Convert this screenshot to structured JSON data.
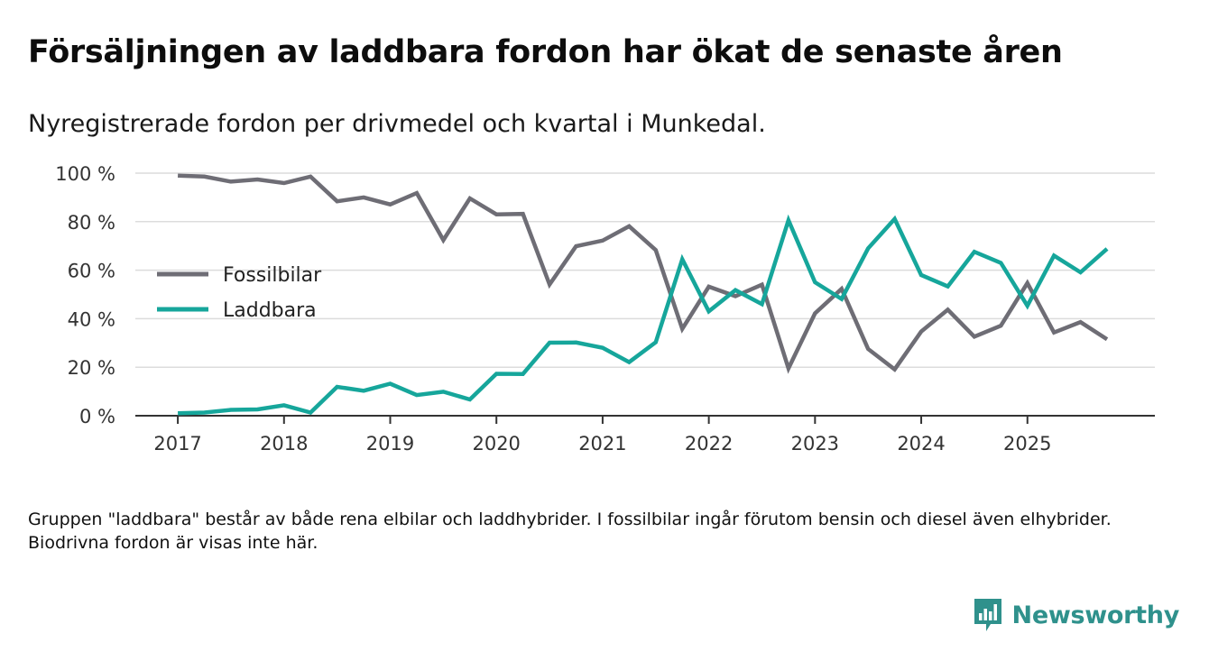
{
  "title": "Försäljningen av laddbara fordon har ökat de senaste åren",
  "subtitle": "Nyregistrerade fordon per drivmedel och kvartal i Munkedal.",
  "footnote": "Gruppen \"laddbara\" består av både rena elbilar och laddhybrider. I fossilbilar ingår förutom bensin och diesel även elhybrider. Biodrivna fordon är visas inte här.",
  "brand": {
    "name": "Newsworthy",
    "icon": "newsworthy-logo-icon",
    "color": "#2f918c"
  },
  "chart_data": {
    "type": "line",
    "title": "Försäljningen av laddbara fordon har ökat de senaste åren",
    "xlabel": "",
    "ylabel": "",
    "ylim": [
      0,
      100
    ],
    "xlim": [
      2016.6,
      2026.2
    ],
    "y_ticks": [
      0,
      20,
      40,
      60,
      80,
      100
    ],
    "y_tick_labels": [
      "0 %",
      "20 %",
      "40 %",
      "60 %",
      "80 %",
      "100 %"
    ],
    "x_ticks": [
      2017,
      2018,
      2019,
      2020,
      2021,
      2022,
      2023,
      2024,
      2025
    ],
    "x_tick_labels": [
      "2017",
      "2018",
      "2019",
      "2020",
      "2021",
      "2022",
      "2023",
      "2024",
      "2025"
    ],
    "grid": "horizontal",
    "legend": "center-left",
    "x": [
      2017.0,
      2017.25,
      2017.5,
      2017.75,
      2018.0,
      2018.25,
      2018.5,
      2018.75,
      2019.0,
      2019.25,
      2019.5,
      2019.75,
      2020.0,
      2020.25,
      2020.5,
      2020.75,
      2021.0,
      2021.25,
      2021.5,
      2021.75,
      2022.0,
      2022.25,
      2022.5,
      2022.75,
      2023.0,
      2023.25,
      2023.5,
      2023.75,
      2024.0,
      2024.25,
      2024.5,
      2024.75,
      2025.0,
      2025.25,
      2025.5,
      2025.75
    ],
    "series": [
      {
        "name": "Fossilbilar",
        "color": "#6e6d75",
        "values": [
          99,
          98.6,
          96.5,
          97.4,
          95.9,
          98.6,
          88.4,
          90,
          87.1,
          91.8,
          72.4,
          89.6,
          83,
          83.2,
          54.1,
          69.9,
          72.2,
          78.1,
          68.3,
          35.8,
          53.2,
          49.3,
          54,
          19.5,
          42.2,
          52.3,
          27.5,
          19.1,
          34.7,
          43.7,
          32.6,
          37.1,
          54.7,
          34.3,
          38.6,
          31.5
        ]
      },
      {
        "name": "Laddbara",
        "color": "#16a69b",
        "values": [
          1,
          1.3,
          2.4,
          2.6,
          4.3,
          1.3,
          11.9,
          10.3,
          13.2,
          8.5,
          9.9,
          6.7,
          17.3,
          17.2,
          30.1,
          30.2,
          28,
          22.1,
          30.3,
          64.5,
          43,
          51.8,
          46,
          80.6,
          55,
          48.1,
          69,
          81.1,
          58,
          53.3,
          67.6,
          63,
          45.3,
          66,
          59.1,
          68.8
        ]
      }
    ]
  }
}
